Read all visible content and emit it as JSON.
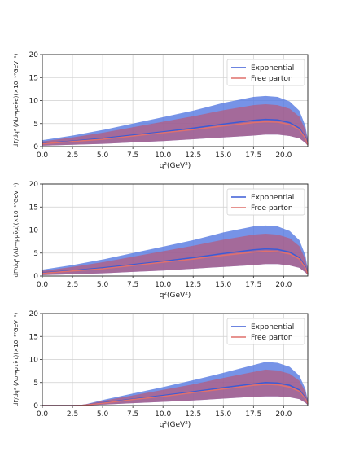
{
  "colors": {
    "exponential_line": "#3b5bd6",
    "exponential_band": "#4f74e0",
    "free_parton_line": "#e0706c",
    "free_parton_band": "#c0506a",
    "grid": "#cfcfcf"
  },
  "chart_data": [
    {
      "type": "area",
      "ylabel": "dΓ/dq² (Λb→peν̄e)(×10⁻¹⁷GeV⁻¹)",
      "xlabel": "q²(GeV²)",
      "xlim": [
        0,
        22.0
      ],
      "ylim": [
        0,
        20
      ],
      "xticks": [
        "0.0",
        "2.5",
        "5.0",
        "7.5",
        "10.0",
        "12.5",
        "15.0",
        "17.5",
        "20.0"
      ],
      "yticks": [
        "0",
        "5",
        "10",
        "15",
        "20"
      ],
      "grid": true,
      "legend_position": "top-right",
      "legend": [
        "Exponential",
        "Free parton"
      ],
      "x": [
        0,
        2.5,
        5,
        7.5,
        10,
        12.5,
        15,
        17.5,
        18.5,
        19.5,
        20.5,
        21.3,
        21.8,
        22.0
      ],
      "series": [
        {
          "name": "Exponential",
          "central": [
            0.7,
            1.2,
            1.8,
            2.5,
            3.2,
            4.0,
            4.9,
            5.7,
            5.9,
            5.8,
            5.2,
            4.0,
            2.0,
            0.5
          ],
          "upper": [
            1.4,
            2.4,
            3.6,
            5.0,
            6.4,
            7.8,
            9.5,
            10.8,
            11.0,
            10.8,
            9.8,
            7.8,
            4.5,
            1.5
          ],
          "lower": [
            0.2,
            0.4,
            0.6,
            0.9,
            1.2,
            1.6,
            2.0,
            2.4,
            2.6,
            2.6,
            2.3,
            1.8,
            0.8,
            0.2
          ]
        },
        {
          "name": "Free parton",
          "central": [
            0.6,
            1.1,
            1.6,
            2.3,
            3.0,
            3.7,
            4.5,
            5.2,
            5.4,
            5.3,
            4.8,
            3.7,
            1.8,
            0.4
          ],
          "upper": [
            1.1,
            2.0,
            3.0,
            4.2,
            5.4,
            6.6,
            7.9,
            9.0,
            9.2,
            9.0,
            8.2,
            6.5,
            3.6,
            1.1
          ],
          "lower": [
            0.2,
            0.4,
            0.6,
            0.9,
            1.2,
            1.6,
            2.0,
            2.4,
            2.6,
            2.6,
            2.3,
            1.8,
            0.8,
            0.2
          ]
        }
      ]
    },
    {
      "type": "area",
      "ylabel": "dΓ/dq² (Λb→pμν̄μ)(×10⁻¹⁷GeV⁻¹)",
      "xlabel": "q²(GeV²)",
      "xlim": [
        0,
        22.0
      ],
      "ylim": [
        0,
        20
      ],
      "xticks": [
        "0.0",
        "2.5",
        "5.0",
        "7.5",
        "10.0",
        "12.5",
        "15.0",
        "17.5",
        "20.0"
      ],
      "yticks": [
        "0",
        "5",
        "10",
        "15",
        "20"
      ],
      "grid": true,
      "legend_position": "top-right",
      "legend": [
        "Exponential",
        "Free parton"
      ],
      "x": [
        0,
        2.5,
        5,
        7.5,
        10,
        12.5,
        15,
        17.5,
        18.5,
        19.5,
        20.5,
        21.3,
        21.8,
        22.0
      ],
      "series": [
        {
          "name": "Exponential",
          "central": [
            0.7,
            1.2,
            1.8,
            2.5,
            3.2,
            4.0,
            4.9,
            5.7,
            5.9,
            5.8,
            5.2,
            4.0,
            2.0,
            0.5
          ],
          "upper": [
            1.4,
            2.4,
            3.6,
            5.0,
            6.4,
            7.8,
            9.5,
            10.8,
            11.0,
            10.8,
            9.8,
            7.8,
            4.5,
            1.5
          ],
          "lower": [
            0.2,
            0.4,
            0.6,
            0.9,
            1.2,
            1.6,
            2.0,
            2.4,
            2.6,
            2.6,
            2.3,
            1.8,
            0.8,
            0.2
          ]
        },
        {
          "name": "Free parton",
          "central": [
            0.6,
            1.1,
            1.6,
            2.3,
            3.0,
            3.7,
            4.5,
            5.2,
            5.4,
            5.3,
            4.8,
            3.7,
            1.8,
            0.4
          ],
          "upper": [
            1.1,
            2.0,
            3.0,
            4.2,
            5.4,
            6.6,
            7.9,
            9.0,
            9.2,
            9.0,
            8.2,
            6.5,
            3.6,
            1.1
          ],
          "lower": [
            0.2,
            0.4,
            0.6,
            0.9,
            1.2,
            1.6,
            2.0,
            2.4,
            2.6,
            2.6,
            2.3,
            1.8,
            0.8,
            0.2
          ]
        }
      ]
    },
    {
      "type": "area",
      "ylabel": "dΓ/dq² (Λb→pτν̄τ)(×10⁻¹⁷GeV⁻¹)",
      "xlabel": "q²(GeV²)",
      "xlim": [
        0,
        22.0
      ],
      "ylim": [
        0,
        20
      ],
      "xticks": [
        "0.0",
        "2.5",
        "5.0",
        "7.5",
        "10.0",
        "12.5",
        "15.0",
        "17.5",
        "20.0"
      ],
      "yticks": [
        "0",
        "5",
        "10",
        "15",
        "20"
      ],
      "grid": true,
      "legend_position": "top-right",
      "legend": [
        "Exponential",
        "Free parton"
      ],
      "x": [
        0,
        2.5,
        3.3,
        5,
        7.5,
        10,
        12.5,
        15,
        17.5,
        18.5,
        19.5,
        20.5,
        21.3,
        21.8,
        22.0
      ],
      "series": [
        {
          "name": "Exponential",
          "central": [
            0,
            0,
            0.05,
            0.6,
            1.4,
            2.2,
            3.0,
            3.9,
            4.7,
            5.0,
            4.9,
            4.4,
            3.4,
            1.7,
            0.4
          ],
          "upper": [
            0,
            0,
            0.1,
            1.2,
            2.6,
            4.0,
            5.5,
            7.1,
            8.8,
            9.5,
            9.3,
            8.4,
            6.5,
            3.6,
            1.1
          ],
          "lower": [
            0,
            0,
            0.02,
            0.2,
            0.5,
            0.8,
            1.1,
            1.5,
            1.9,
            2.0,
            2.0,
            1.8,
            1.4,
            0.6,
            0.1
          ]
        },
        {
          "name": "Free parton",
          "central": [
            0,
            0,
            0.05,
            0.5,
            1.3,
            2.0,
            2.8,
            3.6,
            4.4,
            4.6,
            4.5,
            4.0,
            3.1,
            1.5,
            0.4
          ],
          "upper": [
            0,
            0,
            0.08,
            1.0,
            2.2,
            3.4,
            4.6,
            6.0,
            7.3,
            7.8,
            7.6,
            6.9,
            5.4,
            3.0,
            0.9
          ],
          "lower": [
            0,
            0,
            0.02,
            0.2,
            0.5,
            0.8,
            1.1,
            1.5,
            1.9,
            2.0,
            2.0,
            1.8,
            1.4,
            0.6,
            0.1
          ]
        }
      ]
    }
  ]
}
